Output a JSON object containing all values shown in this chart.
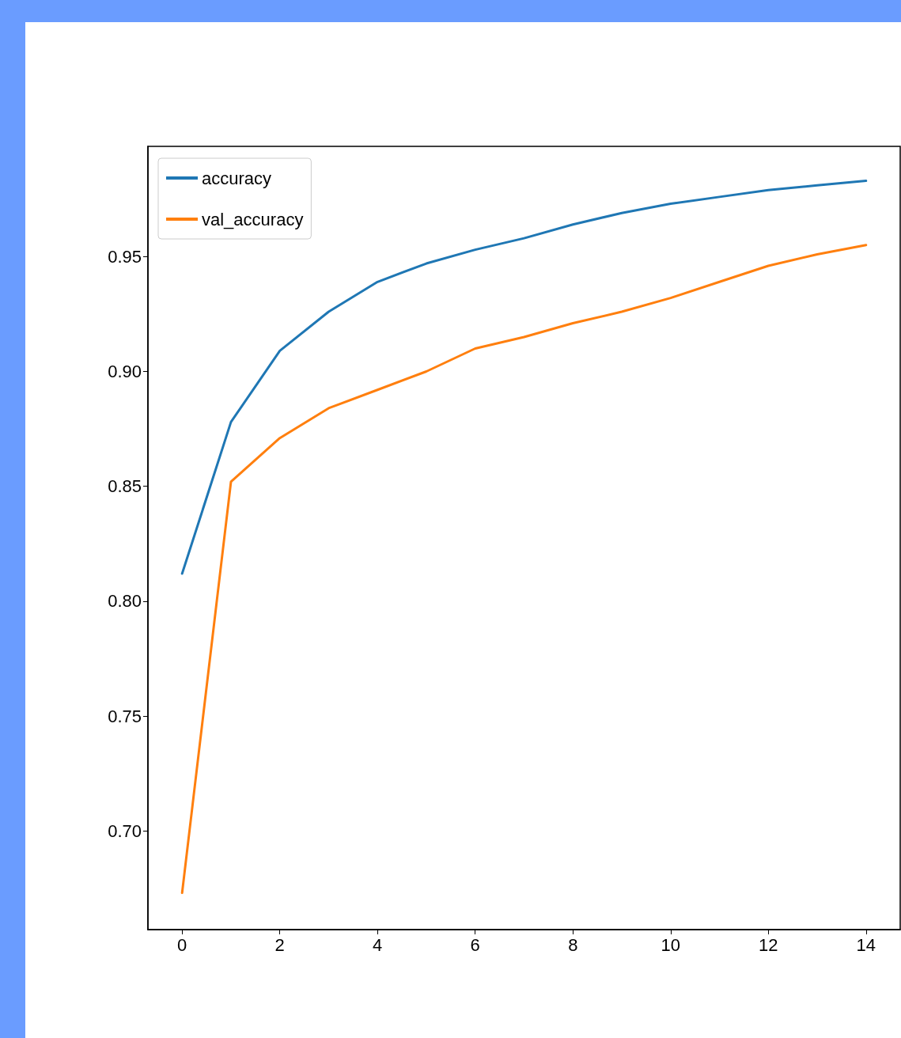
{
  "chart_data": {
    "type": "line",
    "x": [
      0,
      1,
      2,
      3,
      4,
      5,
      6,
      7,
      8,
      9,
      10,
      11,
      12,
      13,
      14
    ],
    "series": [
      {
        "name": "accuracy",
        "color": "#1f77b4",
        "values": [
          0.812,
          0.878,
          0.909,
          0.926,
          0.939,
          0.947,
          0.953,
          0.958,
          0.964,
          0.969,
          0.973,
          0.976,
          0.979,
          0.981,
          0.983
        ]
      },
      {
        "name": "val_accuracy",
        "color": "#ff7f0e",
        "values": [
          0.673,
          0.852,
          0.871,
          0.884,
          0.892,
          0.9,
          0.91,
          0.915,
          0.921,
          0.926,
          0.932,
          0.939,
          0.946,
          0.951,
          0.955
        ]
      }
    ],
    "xlim": [
      -0.7,
      14.7
    ],
    "xticks": [
      0,
      2,
      4,
      6,
      8,
      10,
      12,
      14
    ],
    "ylim": [
      0.657,
      0.998
    ],
    "yticks": [
      {
        "value": 0.7,
        "label": "0.70"
      },
      {
        "value": 0.75,
        "label": "0.75"
      },
      {
        "value": 0.8,
        "label": "0.80"
      },
      {
        "value": 0.85,
        "label": "0.85"
      },
      {
        "value": 0.9,
        "label": "0.90"
      },
      {
        "value": 0.95,
        "label": "0.95"
      }
    ],
    "legend": "top left",
    "grid": false,
    "marker": "none",
    "line_style": "solid"
  }
}
